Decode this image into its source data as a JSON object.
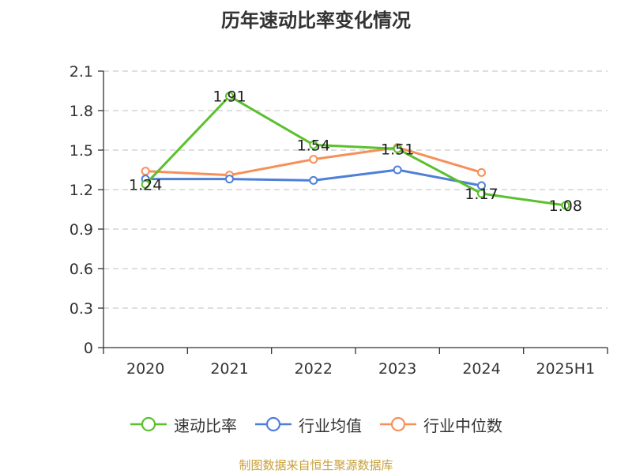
{
  "chart_data": {
    "type": "line",
    "title": "历年速动比率变化情况",
    "xlabel": "",
    "ylabel": "",
    "categories": [
      "2020",
      "2021",
      "2022",
      "2023",
      "2024",
      "2025H1"
    ],
    "ylim": [
      0,
      2.1
    ],
    "yticks": [
      "0",
      "0.3",
      "0.6",
      "0.9",
      "1.2",
      "1.5",
      "1.8",
      "2.1"
    ],
    "grid": true,
    "legend_position": "bottom",
    "series": [
      {
        "name": "速动比率",
        "color": "#5cc02e",
        "values": [
          1.24,
          1.91,
          1.54,
          1.51,
          1.17,
          1.08
        ],
        "labels": [
          "1.24",
          "1.91",
          "1.54",
          "1.51",
          "1.17",
          "1.08"
        ]
      },
      {
        "name": "行业均值",
        "color": "#4f7fd8",
        "values": [
          1.28,
          1.28,
          1.27,
          1.35,
          1.23,
          null
        ]
      },
      {
        "name": "行业中位数",
        "color": "#f6905a",
        "values": [
          1.34,
          1.31,
          1.43,
          1.52,
          1.33,
          null
        ]
      }
    ]
  },
  "footer": {
    "source": "制图数据来自恒生聚源数据库"
  }
}
